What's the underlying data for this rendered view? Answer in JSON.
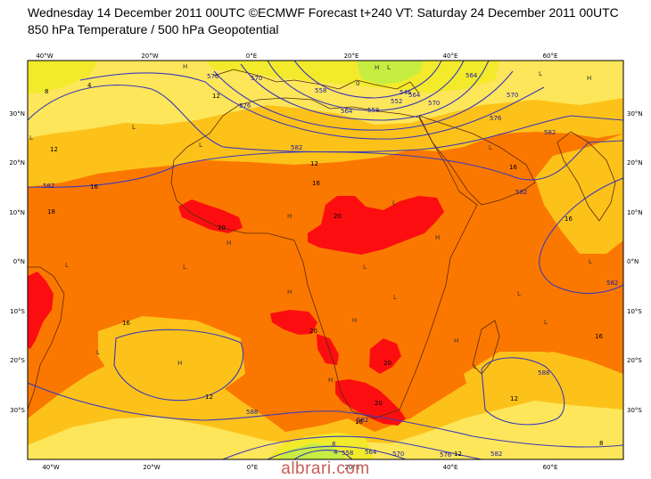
{
  "header": {
    "title": "Wednesday 14 December 2011 00UTC ©ECMWF Forecast t+240 VT: Saturday 24 December 2011 00UTC",
    "subtitle": "850 hPa Temperature / 500 hPa Geopotential"
  },
  "watermark": "albrari.com",
  "colors": {
    "t_lt_0": "#c7ec42",
    "t_4_8": "#f2ea2a",
    "t_8_12": "#fde65a",
    "t_12_16": "#fdc21a",
    "t_16_20": "#fb7800",
    "t_gt_20": "#fc0e10",
    "geopotential_line": "#3a3ab8",
    "coastline": "#5a2a0a"
  },
  "axes": {
    "lon_labels": [
      "40°W",
      "20°W",
      "0°E",
      "20°E",
      "40°E",
      "60°E"
    ],
    "lat_labels": [
      "30°N",
      "20°N",
      "10°N",
      "0°N",
      "10°S",
      "20°S",
      "30°S"
    ]
  },
  "geopotential_labels": [
    "570",
    "576",
    "564",
    "558",
    "582",
    "576",
    "570",
    "564",
    "582",
    "582",
    "582",
    "582",
    "588",
    "588",
    "582",
    "582",
    "576",
    "570",
    "564",
    "558",
    "558",
    "564",
    "570",
    "576",
    "552",
    "546",
    "0",
    "4",
    "8"
  ],
  "temperature_labels": [
    "8",
    "12",
    "4",
    "12",
    "12",
    "16",
    "18",
    "20",
    "20",
    "16",
    "20",
    "16",
    "16",
    "12",
    "20",
    "20",
    "16",
    "12",
    "16",
    "8",
    "12",
    "16"
  ],
  "pressure_centres": [
    "H",
    "L",
    "L",
    "H",
    "L",
    "L",
    "H",
    "L",
    "H",
    "L",
    "H",
    "L",
    "H",
    "L",
    "L",
    "H",
    "L",
    "H",
    "L",
    "H",
    "L",
    "L",
    "H",
    "L",
    "H",
    "L",
    "L"
  ]
}
